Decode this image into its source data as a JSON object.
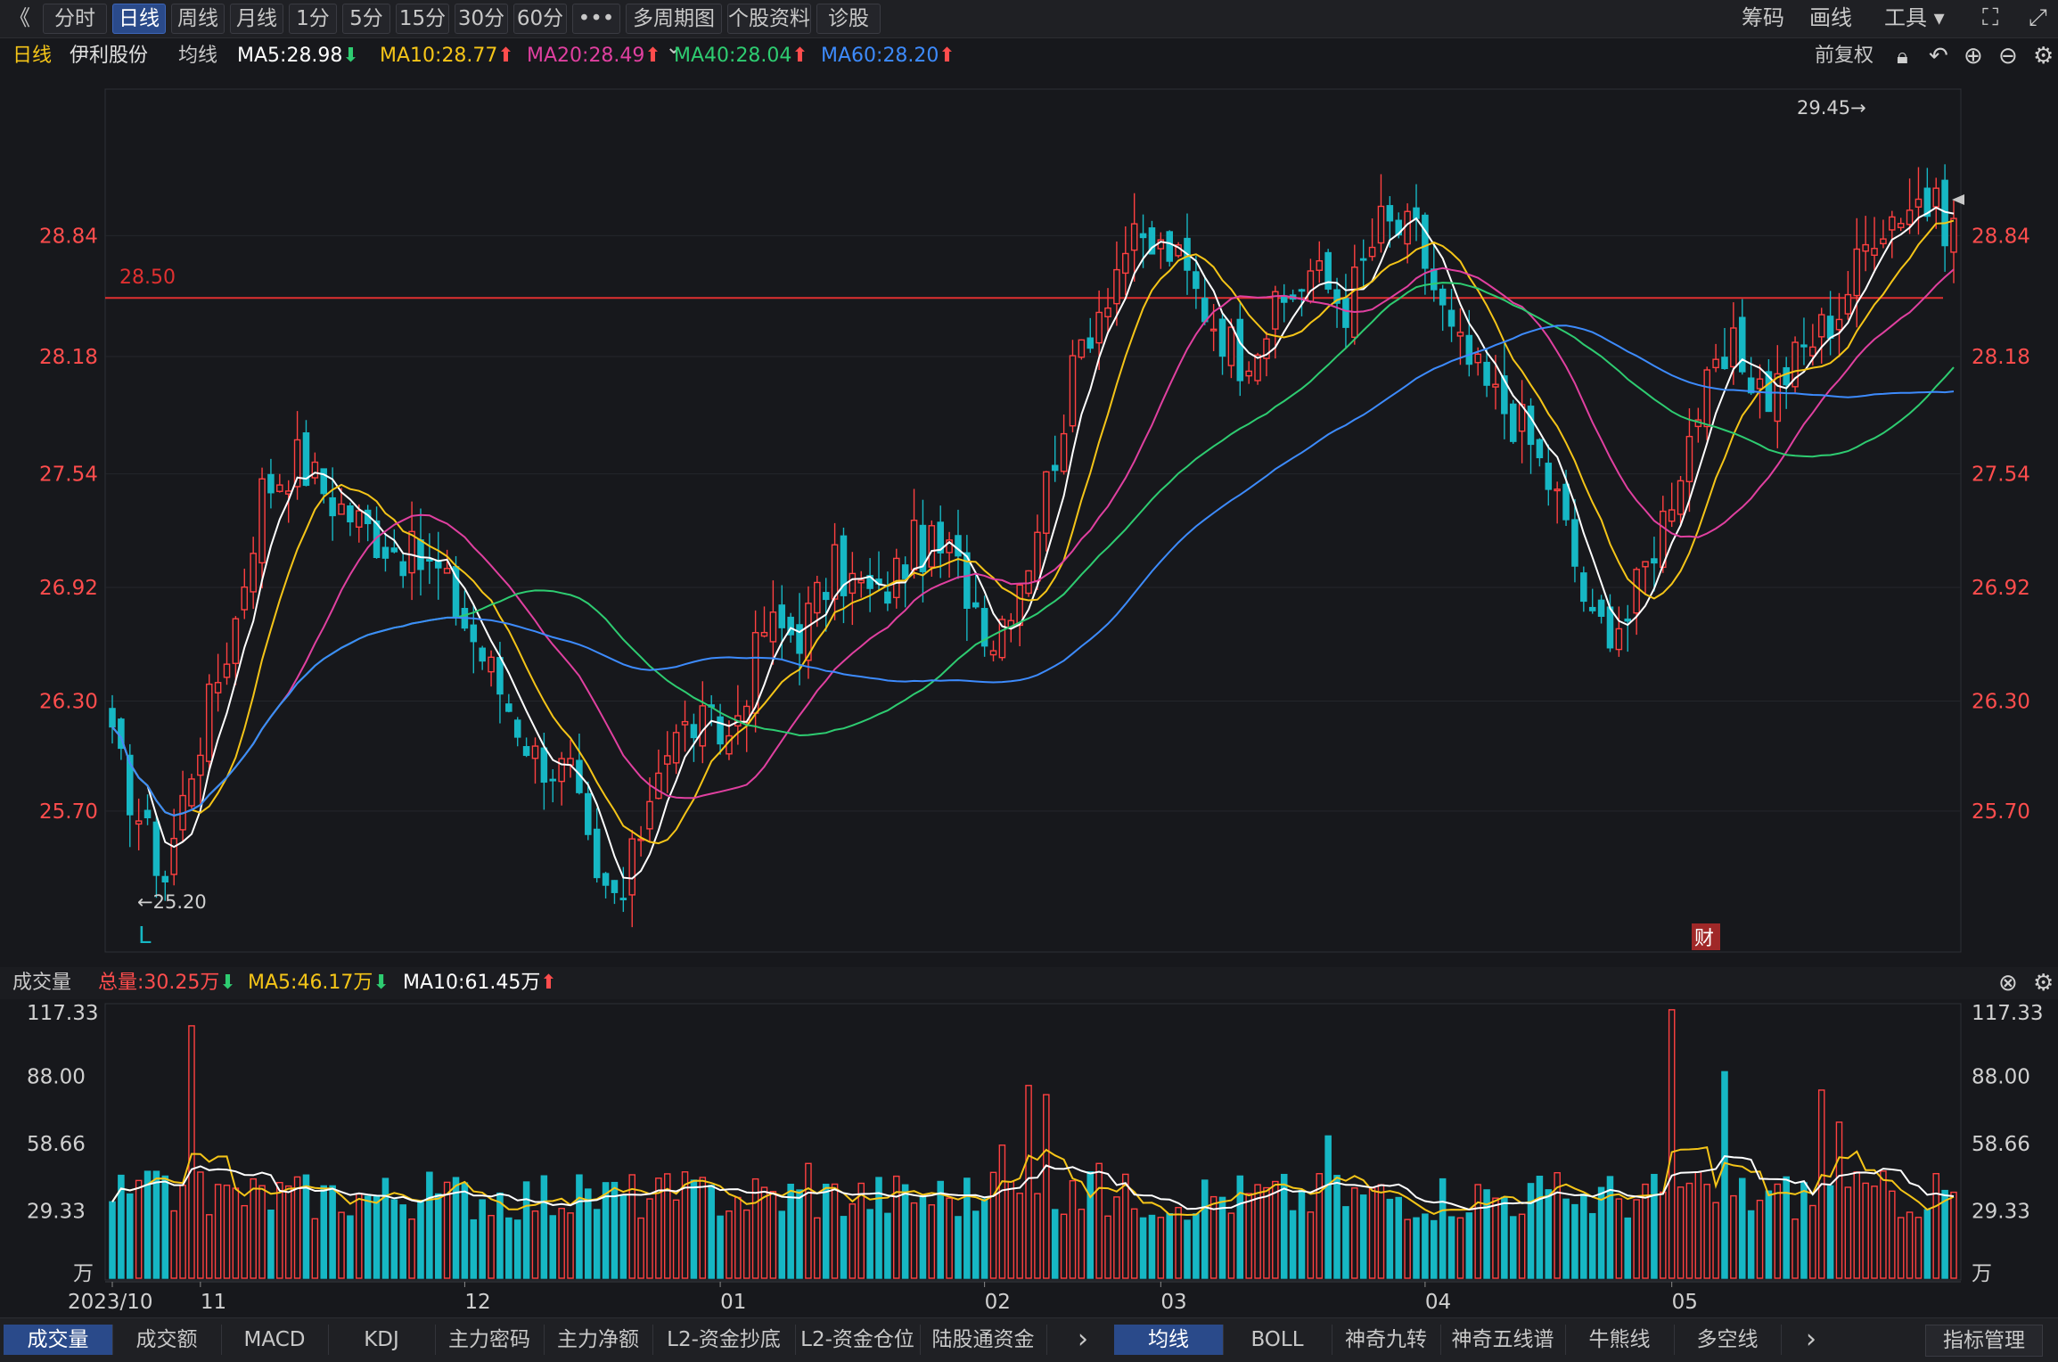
{
  "toolbar": {
    "back_icon": "chevron-double-left-icon",
    "tabs": [
      "分时",
      "日线",
      "周线",
      "月线",
      "1分",
      "5分",
      "15分",
      "30分",
      "60分",
      "•••",
      "多周期图 ⌄",
      "个股资料",
      "诊股"
    ],
    "active_tab": "日线",
    "right": [
      "筹码",
      "画线",
      "工具 ▾"
    ],
    "right_icons": [
      "fullscreen-icon",
      "expand-icon"
    ]
  },
  "main_legend": {
    "period": "日线",
    "stock": "伊利股份",
    "avg_label": "均线",
    "ma": [
      {
        "label": "MA5:28.98",
        "color": "#ffffff",
        "arrow": "⬇",
        "arrow_color": "#2ecc71"
      },
      {
        "label": "MA10:28.77",
        "color": "#f5c518",
        "arrow": "⬆",
        "arrow_color": "#ff4d4d"
      },
      {
        "label": "MA20:28.49",
        "color": "#e040a0",
        "arrow": "⬆",
        "arrow_color": "#ff4d4d"
      },
      {
        "label": "MA40:28.04",
        "color": "#2ecc71",
        "arrow": "⬆",
        "arrow_color": "#ff4d4d"
      },
      {
        "label": "MA60:28.20",
        "color": "#3d8bfd",
        "arrow": "⬆",
        "arrow_color": "#ff4d4d"
      }
    ],
    "adjust": "前复权",
    "icons": [
      "lock-icon",
      "undo-icon",
      "zoom-in-icon",
      "zoom-out-icon",
      "settings-icon"
    ]
  },
  "volume_legend": {
    "title": "成交量",
    "total": "总量:30.25万",
    "total_arrow": "⬇",
    "ma5": "MA5:46.17万",
    "ma5_arrow": "⬇",
    "ma10": "MA10:61.45万",
    "ma10_arrow": "⬆",
    "icons": [
      "close-icon",
      "settings-icon"
    ]
  },
  "chart_data": {
    "type": "candlestick",
    "y_ticks": [
      "28.84",
      "28.18",
      "27.54",
      "26.92",
      "26.30",
      "25.70"
    ],
    "y_tick_values": [
      28.84,
      28.18,
      27.54,
      26.92,
      26.3,
      25.7
    ],
    "ylim": [
      24.95,
      29.62
    ],
    "hline": {
      "label": "28.50",
      "value": 28.5,
      "color": "#e03030"
    },
    "annotations": {
      "high": "29.45→",
      "low": "←25.20",
      "low_marker": "L",
      "event": "财"
    },
    "x_labels": [
      "2023/10",
      "11",
      "12",
      "01",
      "02",
      "03",
      "04",
      "05"
    ],
    "x_label_index": [
      0,
      10,
      40,
      69,
      99,
      119,
      149,
      177
    ],
    "ohlc_anchor_closes": [
      26.05,
      25.55,
      25.35,
      25.95,
      26.75,
      27.45,
      27.62,
      27.4,
      27.2,
      27.0,
      26.55,
      26.0,
      25.9,
      25.25,
      25.22,
      26.0,
      26.18,
      26.1,
      26.7,
      26.68,
      27.02,
      26.85,
      27.15,
      27.1,
      26.65,
      27.1,
      28.25,
      28.78,
      28.76,
      28.45,
      28.18,
      28.4,
      28.65,
      28.46,
      28.9,
      28.84,
      28.28,
      28.0,
      27.8,
      27.4,
      26.7,
      26.76,
      27.3,
      27.9,
      28.2,
      27.97,
      28.22,
      28.44,
      28.9,
      29.05,
      28.88
    ],
    "ohlc_anchor_index": [
      0,
      4,
      6,
      9,
      14,
      17,
      21,
      25,
      30,
      37,
      42,
      48,
      52,
      55,
      58,
      62,
      66,
      70,
      74,
      78,
      82,
      87,
      91,
      95,
      100,
      104,
      110,
      115,
      120,
      124,
      128,
      132,
      136,
      140,
      144,
      148,
      152,
      156,
      160,
      164,
      168,
      172,
      176,
      180,
      184,
      188,
      192,
      196,
      200,
      205,
      209
    ],
    "candles_count": 210,
    "volume": {
      "y_ticks": [
        "117.33",
        "88.00",
        "58.66",
        "29.33",
        "万"
      ],
      "y_tick_values": [
        117.33,
        88.0,
        58.66,
        29.33,
        0
      ],
      "ylim": [
        0,
        117.33
      ],
      "unit": "万",
      "spikes": [
        [
          9,
          110
        ],
        [
          53,
          45
        ],
        [
          79,
          50
        ],
        [
          101,
          58
        ],
        [
          104,
          84
        ],
        [
          106,
          80
        ],
        [
          112,
          50
        ],
        [
          138,
          62
        ],
        [
          177,
          117
        ],
        [
          183,
          90
        ],
        [
          194,
          82
        ],
        [
          196,
          68
        ]
      ]
    },
    "ma_series": [
      "MA5",
      "MA10",
      "MA20",
      "MA40",
      "MA60"
    ]
  },
  "bottom_tabs": {
    "left": [
      "成交量",
      "成交额",
      "MACD",
      "KDJ",
      "主力密码",
      "主力净额",
      "L2-资金抄底",
      "L2-资金仓位",
      "陆股通资金"
    ],
    "left_active": "成交量",
    "right": [
      "均线",
      "BOLL",
      "神奇九转",
      "神奇五线谱",
      "牛熊线",
      "多空线"
    ],
    "right_active": "均线",
    "manage": "指标管理",
    "chevron": "›"
  }
}
